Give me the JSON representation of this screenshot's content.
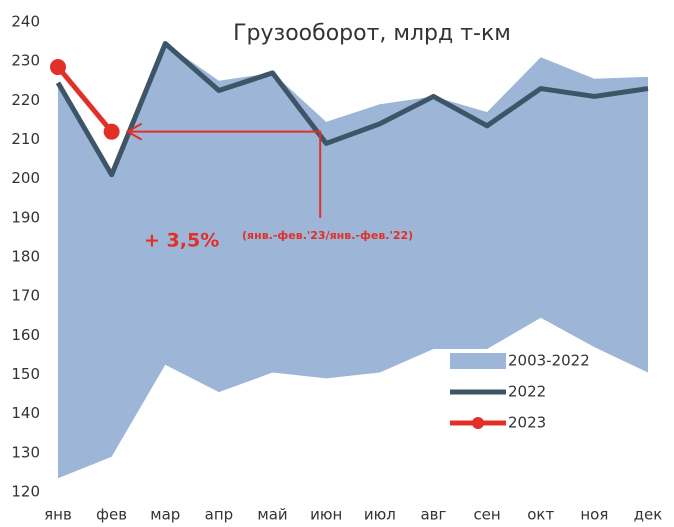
{
  "chart_data": {
    "type": "line",
    "title": "Грузооборот, млрд т-км",
    "categories": [
      "янв",
      "фев",
      "мар",
      "апр",
      "май",
      "июн",
      "июл",
      "авг",
      "сен",
      "окт",
      "ноя",
      "дек"
    ],
    "series": [
      {
        "name": "2003-2022",
        "type": "area",
        "color": "#9db5d6",
        "values": [
          224,
          201,
          234.5,
          225,
          227,
          214.5,
          219,
          221,
          217,
          231,
          225.5,
          226
        ],
        "lower": [
          123.5,
          129,
          152.5,
          145.5,
          150.5,
          149,
          150.5,
          156.5,
          156.5,
          164.5,
          157,
          150.5
        ]
      },
      {
        "name": "2022",
        "type": "line",
        "color": "#3d5566",
        "values": [
          224.5,
          201,
          234.5,
          222.5,
          227,
          209,
          214,
          221,
          213.5,
          223,
          221,
          223
        ]
      },
      {
        "name": "2023",
        "type": "line",
        "color": "#e03028",
        "markers": true,
        "values": [
          228.5,
          212,
          null,
          null,
          null,
          null,
          null,
          null,
          null,
          null,
          null,
          null
        ]
      }
    ],
    "annotations": [
      "+ 3,5%",
      "(янв.-фев.'23/янв.-фев.'22)"
    ],
    "ylim": [
      120,
      240
    ],
    "yticks": [
      120,
      130,
      140,
      150,
      160,
      170,
      180,
      190,
      200,
      210,
      220,
      230,
      240
    ],
    "grid": false,
    "legend": "lower right"
  }
}
